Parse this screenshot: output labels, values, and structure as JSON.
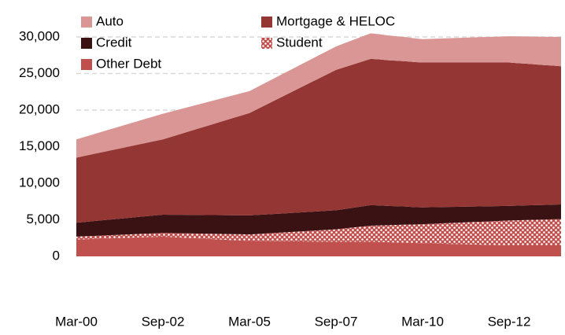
{
  "chart_data": {
    "type": "stacked_area",
    "categories": [
      "Mar-00",
      null,
      null,
      null,
      null,
      null,
      null,
      null,
      null,
      null,
      "Sep-02",
      null,
      null,
      null,
      null,
      null,
      null,
      null,
      null,
      null,
      "Mar-05",
      null,
      null,
      null,
      null,
      null,
      null,
      null,
      null,
      null,
      "Sep-07",
      null,
      null,
      null,
      null,
      null,
      null,
      null,
      null,
      null,
      "Mar-10",
      null,
      null,
      null,
      null,
      null,
      null,
      null,
      null,
      null,
      "Sep-12",
      null,
      null,
      null,
      null,
      null,
      null
    ],
    "series": [
      {
        "name": "Other Debt",
        "color": "#c0504d",
        "values": [
          2300,
          2340,
          2380,
          2420,
          2460,
          2500,
          2540,
          2580,
          2620,
          2660,
          2700,
          2640,
          2580,
          2520,
          2460,
          2400,
          2340,
          2280,
          2220,
          2160,
          2100,
          2090,
          2080,
          2070,
          2060,
          2050,
          2040,
          2030,
          2020,
          2010,
          2000,
          2000,
          2000,
          2000,
          2000,
          1970,
          1930,
          1900,
          1870,
          1830,
          1800,
          1770,
          1740,
          1710,
          1680,
          1650,
          1620,
          1590,
          1560,
          1530,
          1500,
          1500,
          1500,
          1500,
          1500,
          1500,
          1500
        ]
      },
      {
        "name": "Student",
        "color": "#c0504d",
        "pattern": "dots",
        "values": [
          400,
          410,
          420,
          430,
          440,
          450,
          460,
          470,
          480,
          490,
          500,
          540,
          580,
          620,
          660,
          700,
          740,
          780,
          820,
          860,
          900,
          980,
          1060,
          1140,
          1220,
          1300,
          1380,
          1460,
          1540,
          1620,
          1700,
          1825,
          1950,
          2075,
          2200,
          2270,
          2330,
          2400,
          2470,
          2530,
          2600,
          2680,
          2760,
          2840,
          2920,
          3000,
          3080,
          3160,
          3240,
          3320,
          3400,
          3430,
          3470,
          3500,
          3530,
          3570,
          3600
        ]
      },
      {
        "name": "Credit",
        "color": "#3b1214",
        "values": [
          1900,
          1960,
          2020,
          2080,
          2140,
          2200,
          2260,
          2320,
          2380,
          2440,
          2500,
          2510,
          2520,
          2530,
          2540,
          2550,
          2560,
          2570,
          2580,
          2590,
          2600,
          2600,
          2600,
          2600,
          2600,
          2600,
          2600,
          2600,
          2600,
          2600,
          2600,
          2650,
          2700,
          2750,
          2800,
          2720,
          2630,
          2550,
          2470,
          2380,
          2300,
          2270,
          2240,
          2210,
          2180,
          2150,
          2120,
          2090,
          2060,
          2030,
          2000,
          2000,
          2000,
          2000,
          2000,
          2000,
          2000
        ]
      },
      {
        "name": "Mortgage & HELOC",
        "color": "#943634",
        "values": [
          8900,
          9040,
          9180,
          9320,
          9460,
          9600,
          9740,
          9880,
          10020,
          10160,
          10300,
          10670,
          11040,
          11410,
          11780,
          12150,
          12520,
          12890,
          13260,
          13630,
          14000,
          14520,
          15040,
          15560,
          16080,
          16600,
          17120,
          17640,
          18160,
          18680,
          19200,
          19400,
          19600,
          19800,
          20000,
          19970,
          19930,
          19900,
          19870,
          19830,
          19800,
          19780,
          19760,
          19740,
          19720,
          19700,
          19680,
          19660,
          19640,
          19620,
          19600,
          19480,
          19370,
          19250,
          19130,
          19020,
          18900
        ]
      },
      {
        "name": "Auto",
        "color": "#d99694",
        "values": [
          2500,
          2600,
          2700,
          2800,
          2900,
          3000,
          3100,
          3200,
          3300,
          3400,
          3500,
          3450,
          3400,
          3350,
          3300,
          3250,
          3200,
          3150,
          3100,
          3050,
          3000,
          3020,
          3040,
          3060,
          3080,
          3100,
          3120,
          3140,
          3160,
          3180,
          3200,
          3275,
          3350,
          3425,
          3500,
          3450,
          3400,
          3350,
          3300,
          3250,
          3200,
          3240,
          3280,
          3320,
          3360,
          3400,
          3440,
          3480,
          3520,
          3560,
          3600,
          3670,
          3730,
          3800,
          3870,
          3930,
          4000
        ]
      }
    ],
    "ylim": [
      0,
      32000
    ],
    "yticks": [
      0,
      {
        "value": 5000,
        "label": "5,000"
      },
      {
        "value": 10000,
        "label": "10,000"
      },
      {
        "value": 15000,
        "label": "15,000"
      },
      {
        "value": 20000,
        "label": "20,000"
      },
      {
        "value": 25000,
        "label": "25,000"
      },
      {
        "value": 30000,
        "label": "30,000"
      }
    ],
    "grid": true
  }
}
